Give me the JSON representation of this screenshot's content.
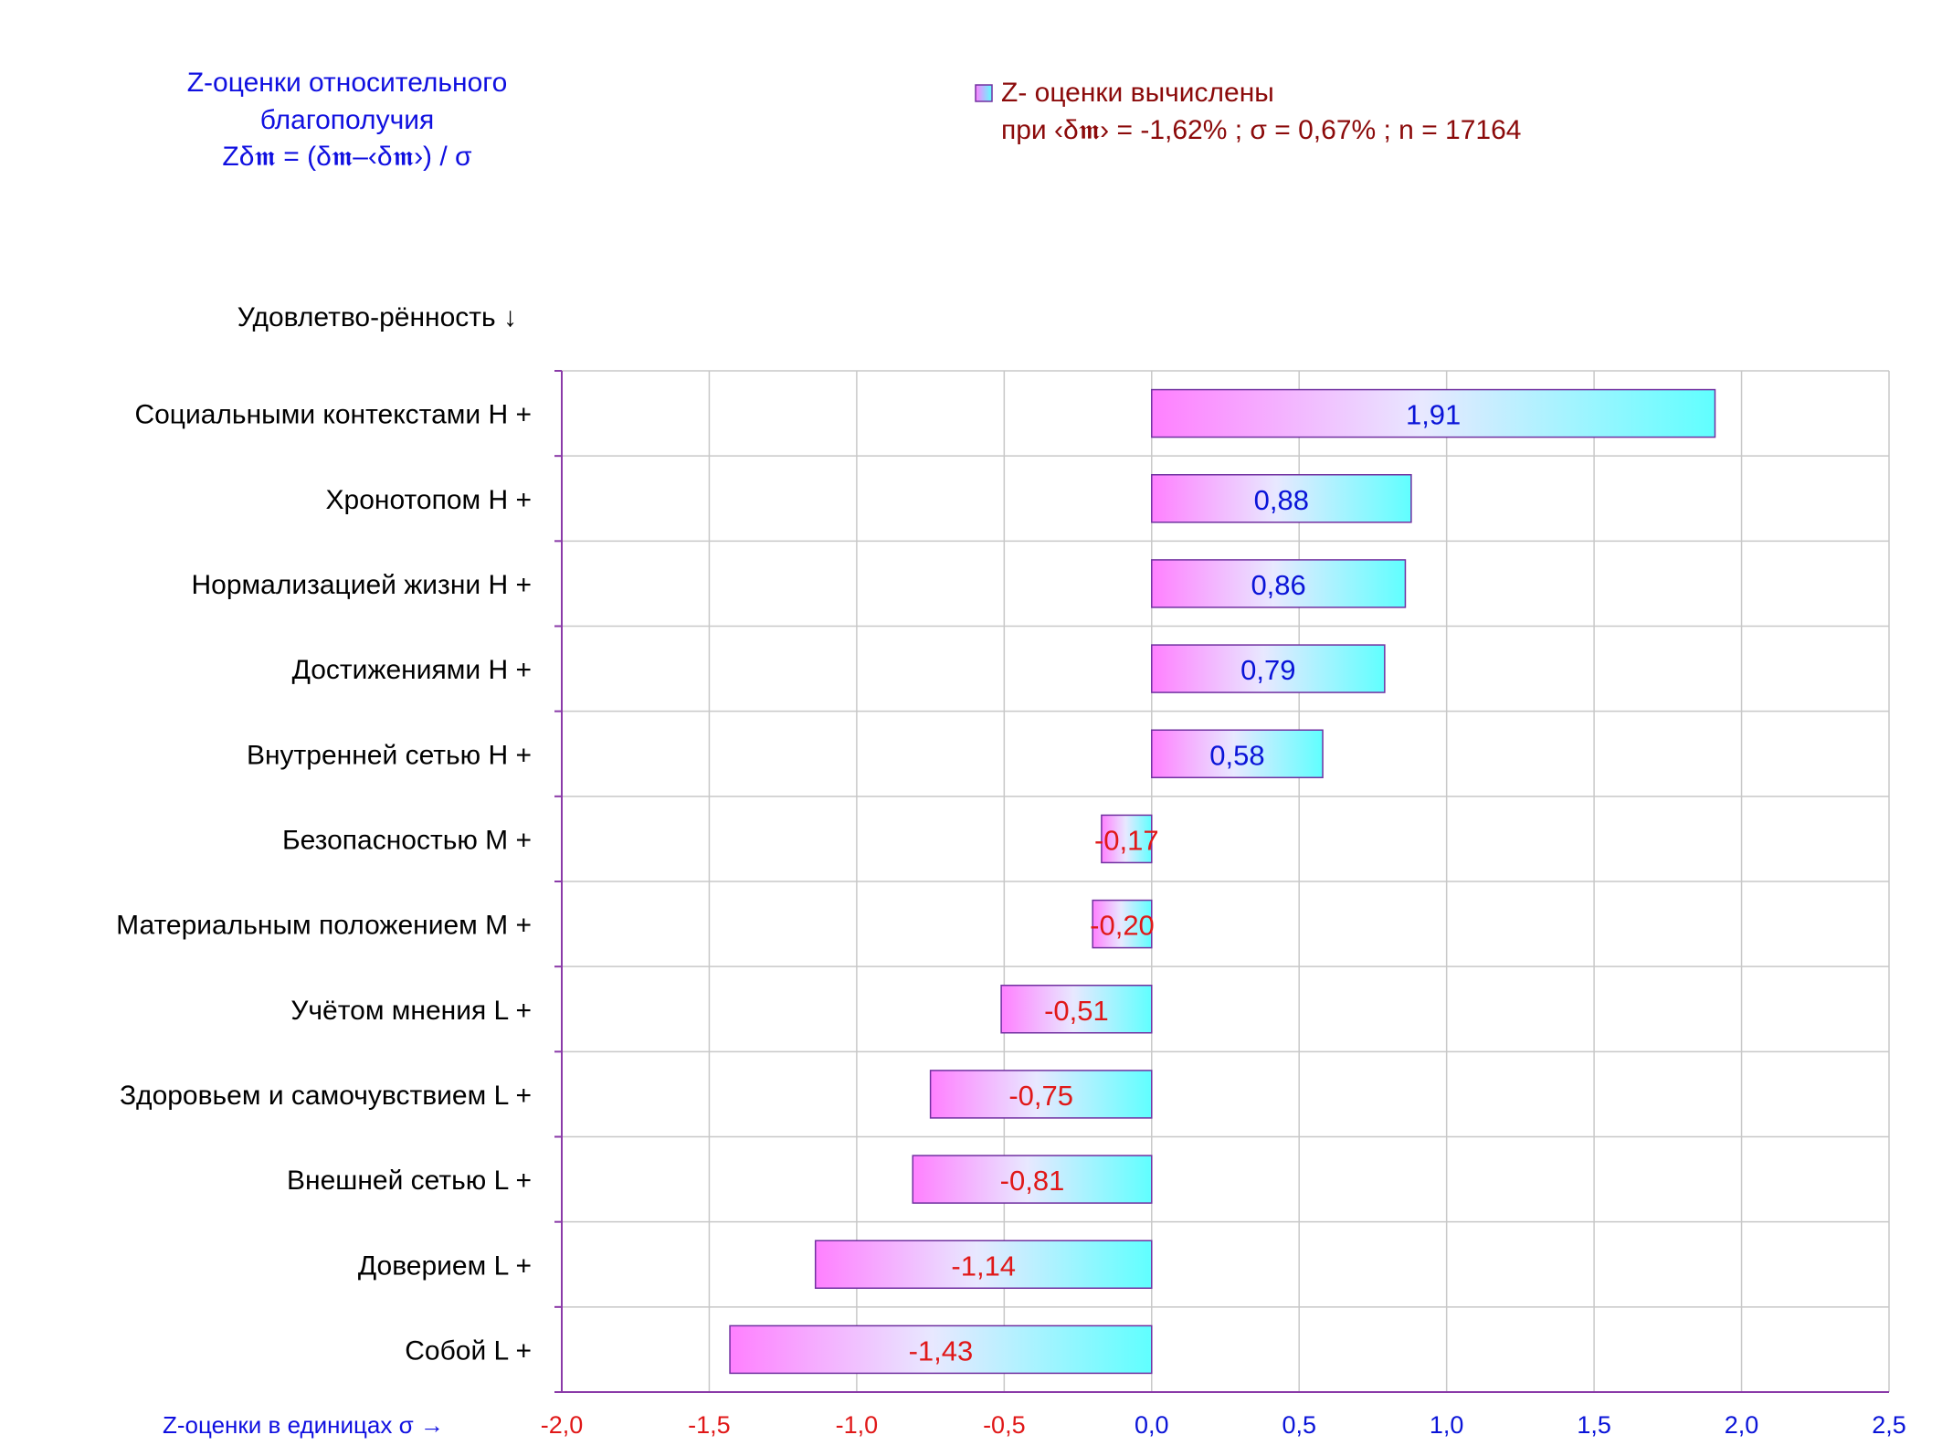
{
  "header": {
    "title_lines": [
      "Z-оценки  относительного",
      "благополучия",
      "Zδ𝖒 = (δ𝖒–‹δ𝖒›)  / σ"
    ]
  },
  "legend": {
    "series_label": "Z- оценки вычислены",
    "params_line": "при ‹δ𝖒› = -1,62% ; σ = 0,67% ; n = 17164",
    "swatch_colors": [
      "#ff80ff",
      "#60ffff"
    ]
  },
  "category_header": "Удовлетво-рённость ↓",
  "x_axis_caption": "Z-оценки в единицах σ →",
  "chart_data": {
    "type": "bar",
    "orientation": "horizontal",
    "title": "Z-оценки относительного благополучия",
    "categories": [
      "Социальными контекстами  H +",
      "Хронотопом  H +",
      "Нормализацией жизни  H +",
      "Достижениями  H +",
      "Внутренней сетью  H +",
      "Безопасностью  M +",
      "Материальным положением  M +",
      "Учётом мнения  L +",
      "Здоровьем и самочувствием  L +",
      "Внешней сетью  L +",
      "Доверием  L +",
      "Собой  L +"
    ],
    "series": [
      {
        "name": "Z- оценки вычислены",
        "values": [
          1.91,
          0.88,
          0.86,
          0.79,
          0.58,
          -0.17,
          -0.2,
          -0.51,
          -0.75,
          -0.81,
          -1.14,
          -1.43
        ]
      }
    ],
    "value_labels": [
      "1,91",
      "0,88",
      "0,86",
      "0,79",
      "0,58",
      "-0,17",
      "-0,20",
      "-0,51",
      "-0,75",
      "-0,81",
      "-1,14",
      "-1,43"
    ],
    "xlim": [
      -2.0,
      2.5
    ],
    "xticks": [
      -2.0,
      -1.5,
      -1.0,
      -0.5,
      0.0,
      0.5,
      1.0,
      1.5,
      2.0,
      2.5
    ],
    "xtick_labels": [
      "-2,0",
      "-1,5",
      "-1,0",
      "-0,5",
      "0,0",
      "0,5",
      "1,0",
      "1,5",
      "2,0",
      "2,5"
    ],
    "xlabel": "Z-оценки в единицах σ →",
    "ylabel": "Удовлетво-рённость ↓",
    "grid": true,
    "legend_position": "top-center",
    "colors": {
      "bar_gradient_start": "#ff80ff",
      "bar_gradient_end": "#60ffff",
      "bar_border": "#7030a0",
      "positive_label": "#0a14d8",
      "negative_label": "#e01818",
      "grid": "#c8c8c8",
      "axis": "#8a3aa8"
    }
  }
}
